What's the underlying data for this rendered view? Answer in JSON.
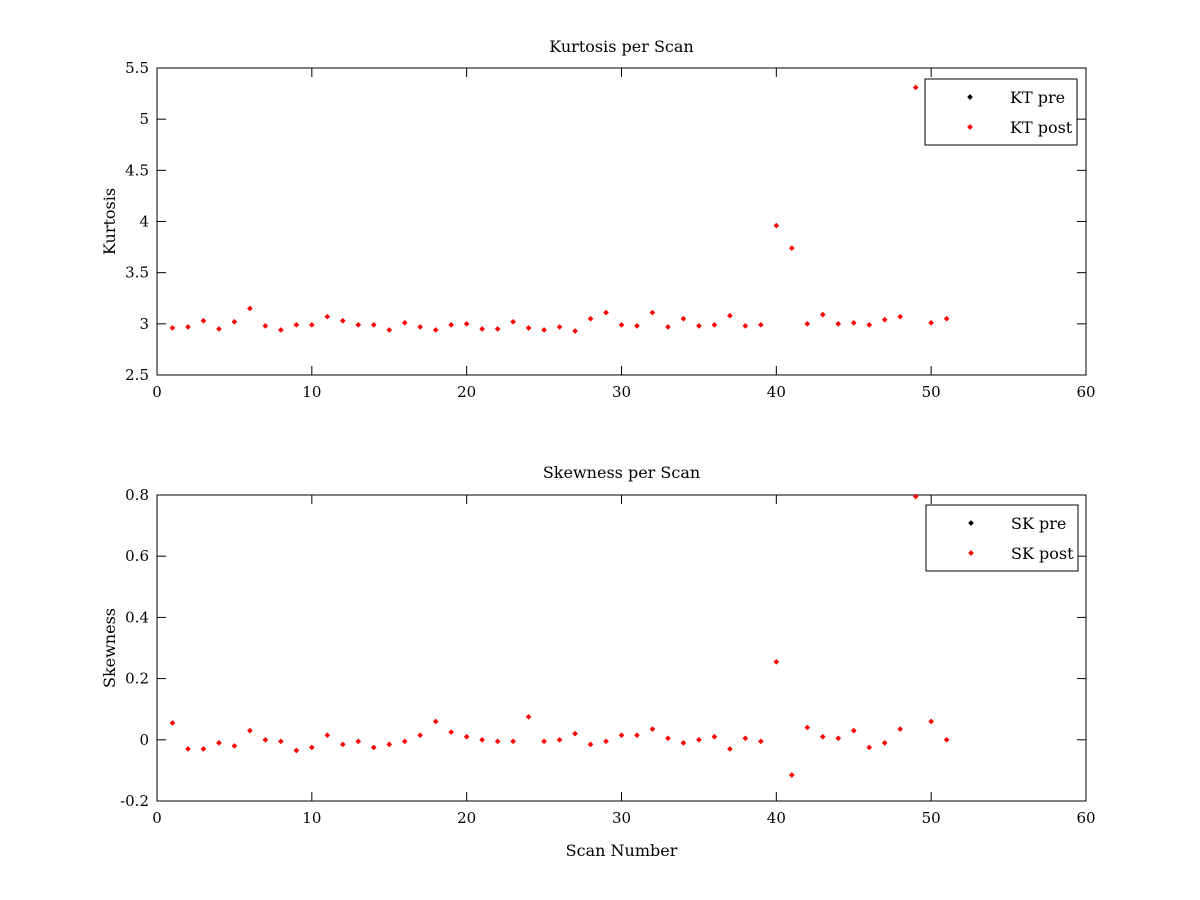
{
  "chart_data": [
    {
      "type": "scatter",
      "title": "Kurtosis per Scan",
      "xlabel": "",
      "ylabel": "Kurtosis",
      "xlim": [
        0,
        60
      ],
      "ylim": [
        2.5,
        5.5
      ],
      "xticks": [
        0,
        10,
        20,
        30,
        40,
        50,
        60
      ],
      "yticks": [
        2.5,
        3,
        3.5,
        4,
        4.5,
        5,
        5.5
      ],
      "xtick_labels": [
        "0",
        "10",
        "20",
        "30",
        "40",
        "50",
        "60"
      ],
      "ytick_labels": [
        "2.5",
        "3",
        "3.5",
        "4",
        "4.5",
        "5",
        "5.5"
      ],
      "grid": false,
      "legend_position": "top-right",
      "series": [
        {
          "name": "KT pre",
          "color": "#000000",
          "x": [],
          "y": []
        },
        {
          "name": "KT post",
          "color": "#ff0000",
          "x": [
            1,
            2,
            3,
            4,
            5,
            6,
            7,
            8,
            9,
            10,
            11,
            12,
            13,
            14,
            15,
            16,
            17,
            18,
            19,
            20,
            21,
            22,
            23,
            24,
            25,
            26,
            27,
            28,
            29,
            30,
            31,
            32,
            33,
            34,
            35,
            36,
            37,
            38,
            39,
            40,
            41,
            42,
            43,
            44,
            45,
            46,
            47,
            48,
            49,
            50,
            51
          ],
          "y": [
            2.96,
            2.97,
            3.03,
            2.95,
            3.02,
            3.15,
            2.98,
            2.94,
            2.99,
            2.99,
            3.07,
            3.03,
            2.99,
            2.99,
            2.94,
            3.01,
            2.97,
            2.94,
            2.99,
            3.0,
            2.95,
            2.95,
            3.02,
            2.96,
            2.94,
            2.97,
            2.93,
            3.05,
            3.11,
            2.99,
            2.98,
            3.11,
            2.97,
            3.05,
            2.98,
            2.99,
            3.08,
            2.98,
            2.99,
            3.96,
            3.74,
            3.0,
            3.09,
            3.0,
            3.01,
            2.99,
            3.04,
            3.07,
            5.31,
            3.01,
            3.05
          ]
        }
      ]
    },
    {
      "type": "scatter",
      "title": "Skewness per Scan",
      "xlabel": "Scan Number",
      "ylabel": "Skewness",
      "xlim": [
        0,
        60
      ],
      "ylim": [
        -0.2,
        0.8
      ],
      "xticks": [
        0,
        10,
        20,
        30,
        40,
        50,
        60
      ],
      "yticks": [
        -0.2,
        0,
        0.2,
        0.4,
        0.6,
        0.8
      ],
      "xtick_labels": [
        "0",
        "10",
        "20",
        "30",
        "40",
        "50",
        "60"
      ],
      "ytick_labels": [
        "-0.2",
        "0",
        "0.2",
        "0.4",
        "0.6",
        "0.8"
      ],
      "grid": false,
      "legend_position": "top-right",
      "series": [
        {
          "name": "SK pre",
          "color": "#000000",
          "x": [],
          "y": []
        },
        {
          "name": "SK post",
          "color": "#ff0000",
          "x": [
            1,
            2,
            3,
            4,
            5,
            6,
            7,
            8,
            9,
            10,
            11,
            12,
            13,
            14,
            15,
            16,
            17,
            18,
            19,
            20,
            21,
            22,
            23,
            24,
            25,
            26,
            27,
            28,
            29,
            30,
            31,
            32,
            33,
            34,
            35,
            36,
            37,
            38,
            39,
            40,
            41,
            42,
            43,
            44,
            45,
            46,
            47,
            48,
            49,
            50,
            51
          ],
          "y": [
            0.055,
            -0.03,
            -0.03,
            -0.01,
            -0.02,
            0.03,
            0.0,
            -0.005,
            -0.035,
            -0.025,
            0.015,
            -0.015,
            -0.005,
            -0.025,
            -0.015,
            -0.005,
            0.015,
            0.06,
            0.025,
            0.01,
            0.0,
            -0.005,
            -0.005,
            0.075,
            -0.005,
            0.0,
            0.02,
            -0.015,
            -0.005,
            0.015,
            0.015,
            0.035,
            0.005,
            -0.01,
            0.0,
            0.01,
            -0.03,
            0.005,
            -0.005,
            0.255,
            -0.115,
            0.04,
            0.01,
            0.005,
            0.03,
            -0.025,
            -0.01,
            0.035,
            0.795,
            0.06,
            0.0
          ]
        }
      ]
    }
  ]
}
